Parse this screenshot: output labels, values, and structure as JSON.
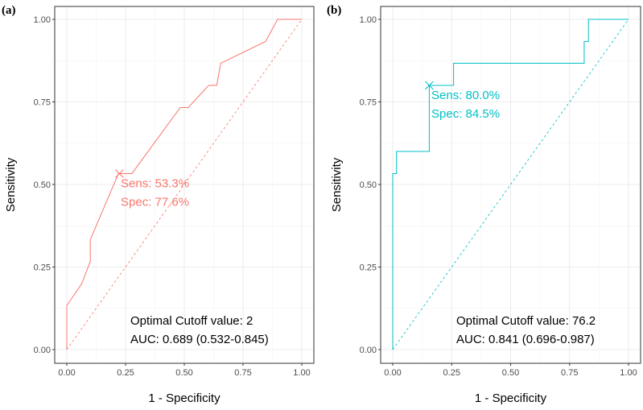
{
  "chart_data": [
    {
      "type": "line",
      "panel_label": "(a)",
      "xlabel": "1 - Specificity",
      "ylabel": "Sensitivity",
      "xlim": [
        0,
        1
      ],
      "ylim": [
        0,
        1
      ],
      "xticks": [
        "0.00",
        "0.25",
        "0.50",
        "0.75",
        "1.00"
      ],
      "yticks": [
        "0.00",
        "0.25",
        "0.50",
        "0.75",
        "1.00"
      ],
      "grid": true,
      "color": "#F8766D",
      "roc": {
        "x": [
          0,
          0,
          0.064,
          0.1,
          0.1,
          0.22,
          0.277,
          0.483,
          0.517,
          0.604,
          0.638,
          0.655,
          0.846,
          0.897,
          1.0
        ],
        "y": [
          0,
          0.133,
          0.2,
          0.267,
          0.333,
          0.533,
          0.533,
          0.733,
          0.733,
          0.8,
          0.8,
          0.867,
          0.933,
          1.0,
          1.0
        ]
      },
      "reference_line": {
        "x": [
          0,
          1
        ],
        "y": [
          0,
          1
        ]
      },
      "optimal_point": {
        "x": 0.224,
        "y": 0.533
      },
      "annotations": {
        "sens": "Sens: 53.3%",
        "spec": "Spec: 77.6%",
        "cutoff": "Optimal Cutoff value: 2",
        "auc": "AUC: 0.689 (0.532-0.845)"
      }
    },
    {
      "type": "line",
      "panel_label": "(b)",
      "xlabel": "1 - Specificity",
      "ylabel": "Sensitivity",
      "xlim": [
        0,
        1
      ],
      "ylim": [
        0,
        1
      ],
      "xticks": [
        "0.00",
        "0.25",
        "0.50",
        "0.75",
        "1.00"
      ],
      "yticks": [
        "0.00",
        "0.25",
        "0.50",
        "0.75",
        "1.00"
      ],
      "grid": true,
      "color": "#00BFC4",
      "roc": {
        "x": [
          0,
          0,
          0.016,
          0.016,
          0.155,
          0.155,
          0.258,
          0.258,
          0.812,
          0.812,
          0.83,
          0.83,
          1.0
        ],
        "y": [
          0,
          0.533,
          0.533,
          0.6,
          0.6,
          0.8,
          0.8,
          0.867,
          0.867,
          0.933,
          0.933,
          1.0,
          1.0
        ]
      },
      "reference_line": {
        "x": [
          0,
          1
        ],
        "y": [
          0,
          1
        ]
      },
      "optimal_point": {
        "x": 0.155,
        "y": 0.8
      },
      "annotations": {
        "sens": "Sens: 80.0%",
        "spec": "Spec: 84.5%",
        "cutoff": "Optimal Cutoff value: 76.2",
        "auc": "AUC: 0.841 (0.696-0.987)"
      }
    }
  ]
}
